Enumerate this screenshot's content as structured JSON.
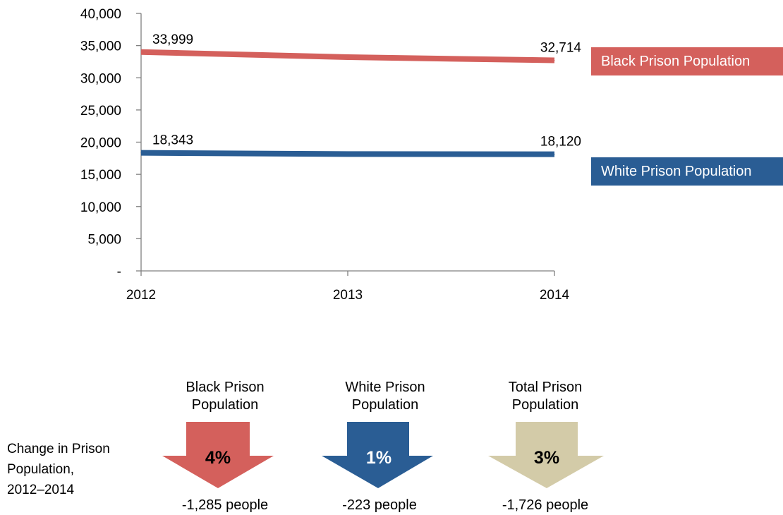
{
  "chart_data": {
    "type": "line",
    "x": [
      "2012",
      "2013",
      "2014"
    ],
    "ylim": [
      0,
      40000
    ],
    "yticks": [
      {
        "value": 0,
        "label": "-"
      },
      {
        "value": 5000,
        "label": "5,000"
      },
      {
        "value": 10000,
        "label": "10,000"
      },
      {
        "value": 15000,
        "label": "15,000"
      },
      {
        "value": 20000,
        "label": "20,000"
      },
      {
        "value": 25000,
        "label": "25,000"
      },
      {
        "value": 30000,
        "label": "30,000"
      },
      {
        "value": 35000,
        "label": "35,000"
      },
      {
        "value": 40000,
        "label": "40,000"
      }
    ],
    "grid": false,
    "series": [
      {
        "name": "Black Prison Population",
        "color": "#d4605c",
        "values": [
          33999,
          33200,
          32714
        ],
        "labels": [
          "33,999",
          "",
          "32,714"
        ]
      },
      {
        "name": "White Prison Population",
        "color": "#2a5d94",
        "values": [
          18343,
          18150,
          18120
        ],
        "labels": [
          "18,343",
          "",
          "18,120"
        ]
      }
    ]
  },
  "change_panel": {
    "row_label": [
      "Change in Prison",
      "Population,",
      "2012–2014"
    ],
    "arrows": [
      {
        "title": [
          "Black Prison",
          "Population"
        ],
        "percent": "4%",
        "people": "-1,285 people",
        "color": "#d4605c",
        "text_color": "#000000"
      },
      {
        "title": [
          "White Prison",
          "Population"
        ],
        "percent": "1%",
        "people": "-223 people",
        "color": "#2a5d94",
        "text_color": "#ffffff"
      },
      {
        "title": [
          "Total Prison",
          "Population"
        ],
        "percent": "3%",
        "people": "-1,726 people",
        "color": "#d3cba8",
        "text_color": "#000000"
      }
    ]
  }
}
